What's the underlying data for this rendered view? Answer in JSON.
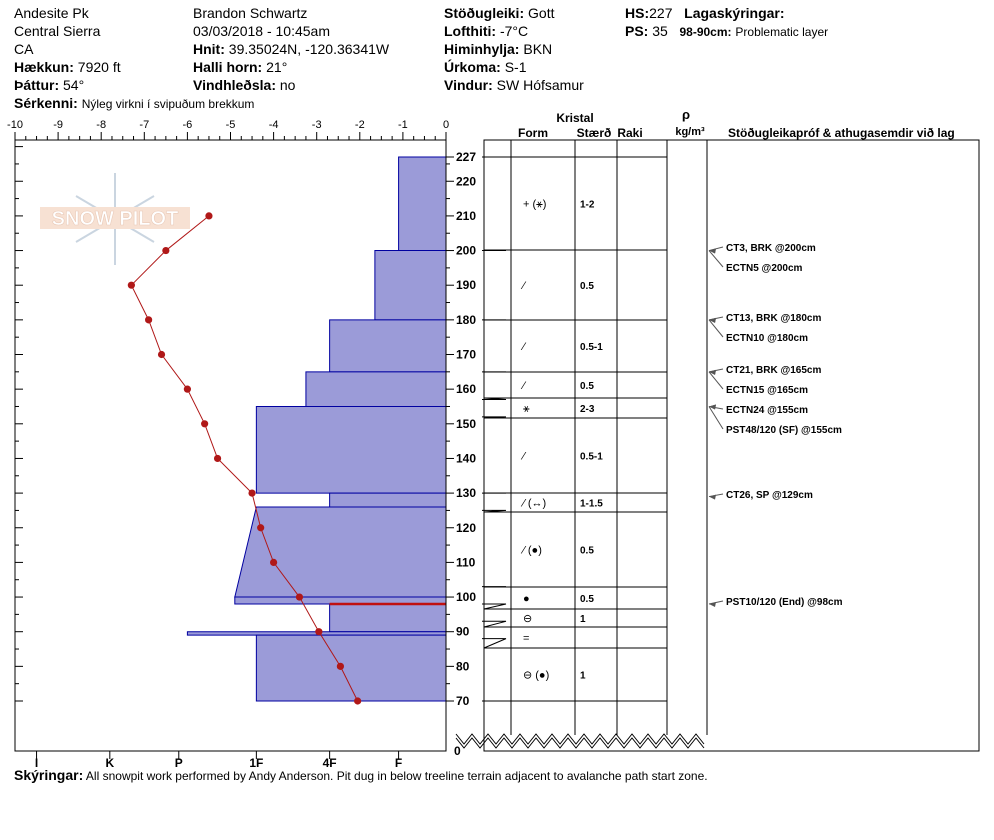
{
  "header": {
    "location": "Andesite Pk",
    "range": "Central Sierra",
    "state": "CA",
    "elevation_label": "Hækkun:",
    "elevation": "7920 ft",
    "aspect_label": "Þáttur:",
    "aspect": "54°",
    "features_label": "Sérkenni:",
    "features": "Nýleg virkni í svipuðum brekkum",
    "observer": "Brandon Schwartz",
    "datetime": "03/03/2018 - 10:45am",
    "coords_label": "Hnit:",
    "coords": "39.35024N, -120.36341W",
    "slope_label": "Halli horn:",
    "slope": "21°",
    "wind_loading_label": "Vindhleðsla:",
    "wind_loading": "no",
    "stability_label": "Stöðugleiki:",
    "stability": "Gott",
    "air_temp_label": "Lofthiti:",
    "air_temp": "-7°C",
    "sky_label": "Himinhylja:",
    "sky": "BKN",
    "precip_label": "Úrkoma:",
    "precip": "S-1",
    "wind_label": "Vindur:",
    "wind": "SW Hófsamur",
    "hs_label": "HS:",
    "hs": "227",
    "ps_label": "PS:",
    "ps": "35",
    "layer_notes_label": "Lagaskýringar:",
    "layer_notes_range": "98-90cm:",
    "layer_notes_text": "Problematic layer"
  },
  "table_headers": {
    "crystal": "Kristal",
    "form": "Form",
    "size": "Stærð",
    "moisture": "Raki",
    "density_symbol": "ρ",
    "density_unit": "kg/m³",
    "tests": "Stöðugleikapróf & athugasemdir við lag"
  },
  "comments_label": "Skýringar:",
  "comments": "All snowpit work performed by Andy Anderson. Pit dug in below treeline terrain adjacent to avalanche path start zone.",
  "watermark": "SNOW PILOT",
  "colors": {
    "hardness_fill": "#9b9bd8",
    "hardness_stroke": "#0000a0",
    "temp_line": "#b01818",
    "problem_layer": "#c01010"
  },
  "chart_data": {
    "type": "snow-profile",
    "height_unit": "cm",
    "height_ticks": [
      "227",
      "220",
      "210",
      "200",
      "190",
      "180",
      "170",
      "160",
      "150",
      "140",
      "130",
      "120",
      "110",
      "100",
      "90",
      "80",
      "70"
    ],
    "height_range": [
      65,
      227
    ],
    "zero_label": "0",
    "temperature": {
      "ticks": [
        "-10",
        "-9",
        "-8",
        "-7",
        "-6",
        "-5",
        "-4",
        "-3",
        "-2",
        "-1",
        "0"
      ],
      "range": [
        -10,
        0
      ],
      "points": [
        {
          "h": 210,
          "t": -5.5
        },
        {
          "h": 200,
          "t": -6.5
        },
        {
          "h": 190,
          "t": -7.3
        },
        {
          "h": 180,
          "t": -6.9
        },
        {
          "h": 170,
          "t": -6.6
        },
        {
          "h": 160,
          "t": -6.0
        },
        {
          "h": 150,
          "t": -5.6
        },
        {
          "h": 140,
          "t": -5.3
        },
        {
          "h": 130,
          "t": -4.5
        },
        {
          "h": 120,
          "t": -4.3
        },
        {
          "h": 110,
          "t": -4.0
        },
        {
          "h": 100,
          "t": -3.4
        },
        {
          "h": 90,
          "t": -2.95
        },
        {
          "h": 80,
          "t": -2.45
        },
        {
          "h": 70,
          "t": -2.05
        }
      ]
    },
    "hardness": {
      "ticks": [
        "I",
        "K",
        "P",
        "1F",
        "4F",
        "F"
      ],
      "tick_temps": [
        -9.5,
        -7.8,
        -6.2,
        -4.4,
        -2.7,
        -1.1
      ],
      "layers": [
        {
          "top": 227,
          "bottom": 200,
          "t_top": -1.1,
          "t_bottom": -1.1
        },
        {
          "top": 200,
          "bottom": 180,
          "t_top": -1.65,
          "t_bottom": -1.65
        },
        {
          "top": 180,
          "bottom": 165,
          "t_top": -2.7,
          "t_bottom": -2.7
        },
        {
          "top": 165,
          "bottom": 155,
          "t_top": -3.25,
          "t_bottom": -3.25
        },
        {
          "top": 155,
          "bottom": 130,
          "t_top": -4.4,
          "t_bottom": -4.4
        },
        {
          "top": 130,
          "bottom": 126,
          "t_top": -2.7,
          "t_bottom": -2.7
        },
        {
          "top": 126,
          "bottom": 100,
          "t_top": -4.4,
          "t_bottom": -4.9
        },
        {
          "top": 100,
          "bottom": 98,
          "t_top": -4.9,
          "t_bottom": -4.9
        },
        {
          "top": 98,
          "bottom": 90,
          "t_top": -2.7,
          "t_bottom": -2.7
        },
        {
          "top": 90,
          "bottom": 89,
          "t_top": -6.0,
          "t_bottom": -6.0
        },
        {
          "top": 89,
          "bottom": 70,
          "t_top": -4.4,
          "t_bottom": -4.4
        }
      ],
      "problem_layer_h": 98
    },
    "strata": [
      {
        "top": 227,
        "bottom": 200,
        "form": "+ (⚹)",
        "size": "1-2"
      },
      {
        "top": 200,
        "bottom": 180,
        "form": "⁄",
        "size": "0.5"
      },
      {
        "top": 180,
        "bottom": 165,
        "form": "⁄",
        "size": "0.5-1"
      },
      {
        "top": 165,
        "bottom": 157,
        "form": "⁄",
        "size": "0.5"
      },
      {
        "top": 157,
        "bottom": 152,
        "form": "⚹",
        "size": "2-3"
      },
      {
        "top": 152,
        "bottom": 130,
        "form": "⁄",
        "size": "0.5-1"
      },
      {
        "top": 130,
        "bottom": 125,
        "form": "⁄ (↔)",
        "size": "1-1.5"
      },
      {
        "top": 125,
        "bottom": 103,
        "form": "⁄ (●)",
        "size": "0.5"
      },
      {
        "top": 103,
        "bottom": 98,
        "form": "●",
        "size": "0.5"
      },
      {
        "top": 98,
        "bottom": 93,
        "form": "⊖",
        "size": "1"
      },
      {
        "top": 93,
        "bottom": 88,
        "form": "=",
        "size": ""
      },
      {
        "top": 88,
        "bottom": 70,
        "form": "⊖ (●)",
        "size": "1"
      }
    ],
    "tests": [
      {
        "h": 200,
        "label": "CT3, BRK @200cm"
      },
      {
        "h": 200,
        "label": "ECTN5 @200cm"
      },
      {
        "h": 180,
        "label": "CT13, BRK @180cm"
      },
      {
        "h": 180,
        "label": "ECTN10 @180cm"
      },
      {
        "h": 165,
        "label": "CT21, BRK @165cm"
      },
      {
        "h": 165,
        "label": "ECTN15 @165cm"
      },
      {
        "h": 155,
        "label": "ECTN24 @155cm"
      },
      {
        "h": 155,
        "label": "PST48/120 (SF) @155cm"
      },
      {
        "h": 129,
        "label": "CT26, SP @129cm"
      },
      {
        "h": 98,
        "label": "PST10/120 (End) @98cm"
      }
    ]
  }
}
